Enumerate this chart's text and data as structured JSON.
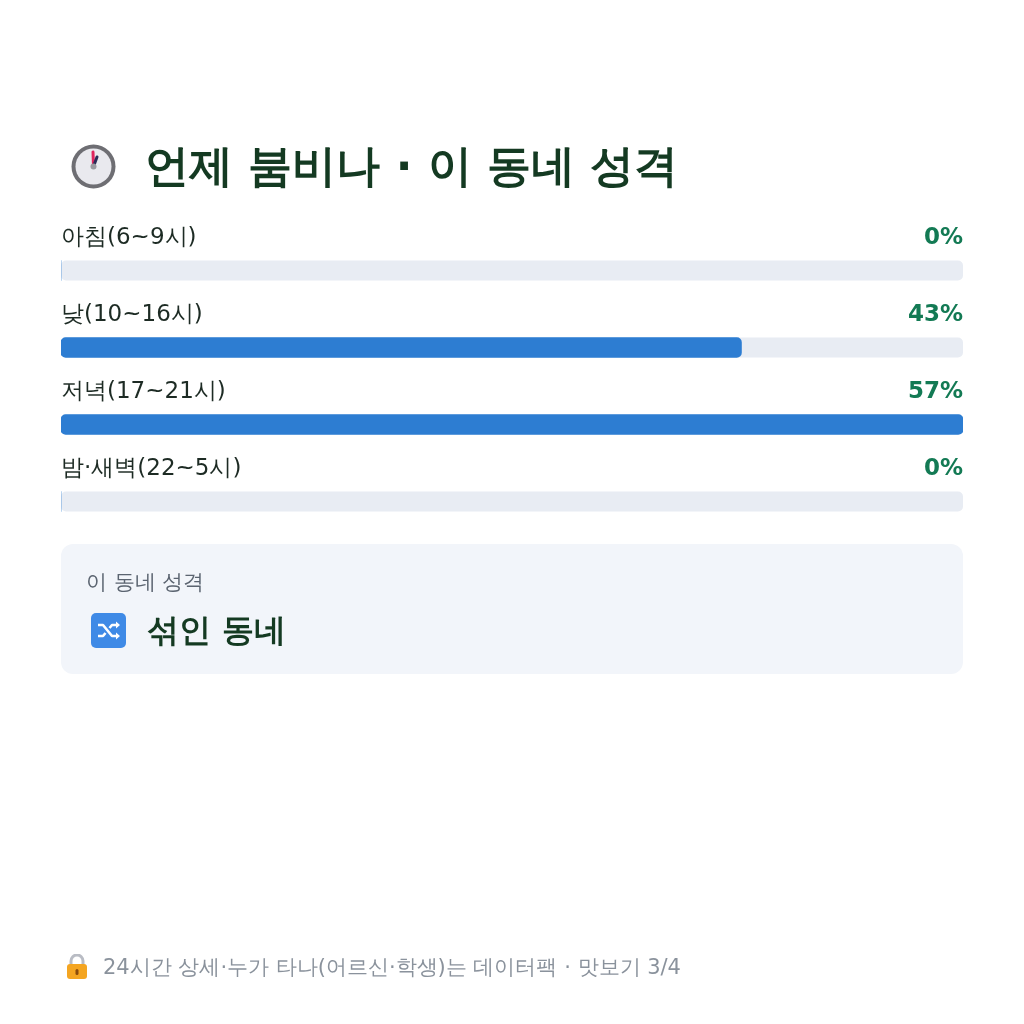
{
  "chart_data": {
    "type": "bar",
    "orientation": "horizontal",
    "title": "언제 붐비나 · 이 동네 성격",
    "categories": [
      "아침(6~9시)",
      "낮(10~16시)",
      "저녁(17~21시)",
      "밤·새벽(22~5시)"
    ],
    "values": [
      0,
      43,
      57,
      0
    ],
    "value_labels": [
      "0%",
      "43%",
      "57%",
      "0%"
    ],
    "color": "#2d7dd2",
    "xlim": [
      0,
      57
    ],
    "annotations": [
      "이 동네 성격",
      "섞인 동네",
      "24시간 상세·누가 타나(어르신·학생)는 데이터팩 · 맛보기 3/4"
    ]
  }
}
